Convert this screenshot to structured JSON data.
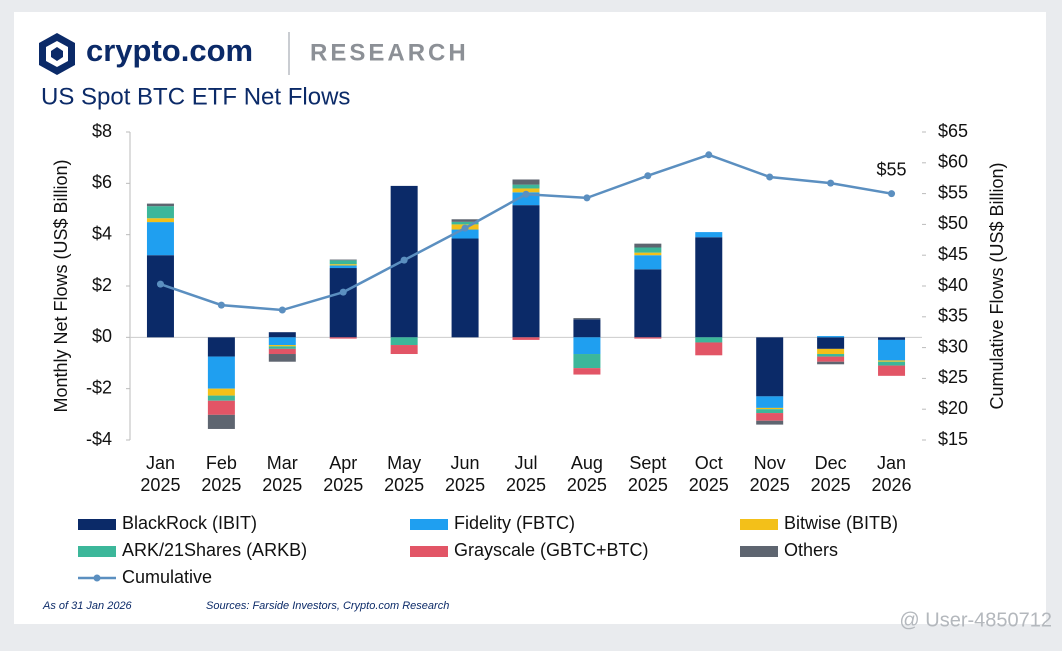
{
  "header": {
    "brand": "crypto.com",
    "section": "RESEARCH"
  },
  "footer": {
    "as_of": "As of 31 Jan 2026",
    "sources": "Sources: Farside Investors, Crypto.com Research",
    "watermark": "@ User-4850712"
  },
  "chart_data": {
    "type": "bar",
    "stacked": true,
    "title": "US Spot BTC ETF Net Flows",
    "y_label": "Monthly Net Flows (US$ Billion)",
    "y2_label": "Cumulative Flows (US$ Billion)",
    "categories": [
      "Jan 2025",
      "Feb 2025",
      "Mar 2025",
      "Apr 2025",
      "May 2025",
      "Jun 2025",
      "Jul 2025",
      "Aug 2025",
      "Sept 2025",
      "Oct 2025",
      "Nov 2025",
      "Dec 2025",
      "Jan 2026"
    ],
    "ylim": [
      -4,
      8
    ],
    "yticks": [
      {
        "value": -4,
        "label": "-$4"
      },
      {
        "value": -2,
        "label": "-$2"
      },
      {
        "value": 0,
        "label": "$0"
      },
      {
        "value": 2,
        "label": "$2"
      },
      {
        "value": 4,
        "label": "$4"
      },
      {
        "value": 6,
        "label": "$6"
      },
      {
        "value": 8,
        "label": "$8"
      }
    ],
    "y2lim": [
      15,
      65
    ],
    "y2ticks": [
      {
        "value": 15,
        "label": "$15"
      },
      {
        "value": 20,
        "label": "$20"
      },
      {
        "value": 25,
        "label": "$25"
      },
      {
        "value": 30,
        "label": "$30"
      },
      {
        "value": 35,
        "label": "$35"
      },
      {
        "value": 40,
        "label": "$40"
      },
      {
        "value": 45,
        "label": "$45"
      },
      {
        "value": 50,
        "label": "$50"
      },
      {
        "value": 55,
        "label": "$55"
      },
      {
        "value": 60,
        "label": "$60"
      },
      {
        "value": 65,
        "label": "$65"
      }
    ],
    "series": [
      {
        "name": "BlackRock (IBIT)",
        "color": "#0b2a68",
        "values": [
          3.2,
          -0.75,
          0.2,
          2.7,
          5.9,
          3.85,
          5.15,
          0.7,
          2.65,
          3.9,
          -2.3,
          -0.45,
          -0.1
        ]
      },
      {
        "name": "Fidelity (FBTC)",
        "color": "#1f9ff0",
        "values": [
          1.29,
          -1.25,
          -0.3,
          0.1,
          0,
          0.35,
          0.5,
          -0.65,
          0.55,
          0.2,
          -0.45,
          0.05,
          -0.8
        ]
      },
      {
        "name": "Bitwise (BITB)",
        "color": "#f3c019",
        "values": [
          0.15,
          -0.27,
          -0.05,
          0.05,
          0,
          0.2,
          0.15,
          0,
          0.1,
          0,
          -0.05,
          -0.2,
          -0.05
        ]
      },
      {
        "name": "ARK/21Shares (ARKB)",
        "color": "#3cb79a",
        "values": [
          0.47,
          -0.2,
          -0.1,
          0.15,
          -0.3,
          0.1,
          0.15,
          -0.55,
          0.2,
          -0.2,
          -0.15,
          -0.1,
          -0.15
        ]
      },
      {
        "name": "Grayscale (GBTC+BTC)",
        "color": "#e25566",
        "values": [
          0,
          -0.55,
          -0.2,
          -0.05,
          -0.35,
          0,
          -0.1,
          -0.25,
          -0.05,
          -0.5,
          -0.3,
          -0.2,
          -0.4
        ]
      },
      {
        "name": "Others",
        "color": "#5e6570",
        "values": [
          0.1,
          -0.55,
          -0.3,
          0.03,
          0,
          0.1,
          0.2,
          0.05,
          0.15,
          0,
          -0.15,
          -0.1,
          0
        ]
      },
      {
        "name": "Cumulative",
        "type": "line",
        "axis": "y2",
        "color": "#5b8fc0",
        "values": [
          40.3,
          36.9,
          36.1,
          39.0,
          44.2,
          49.4,
          54.9,
          54.3,
          57.9,
          61.3,
          57.7,
          56.7,
          55
        ],
        "value_labels": [
          null,
          null,
          null,
          null,
          null,
          null,
          null,
          null,
          null,
          null,
          null,
          null,
          "$55"
        ]
      }
    ]
  }
}
